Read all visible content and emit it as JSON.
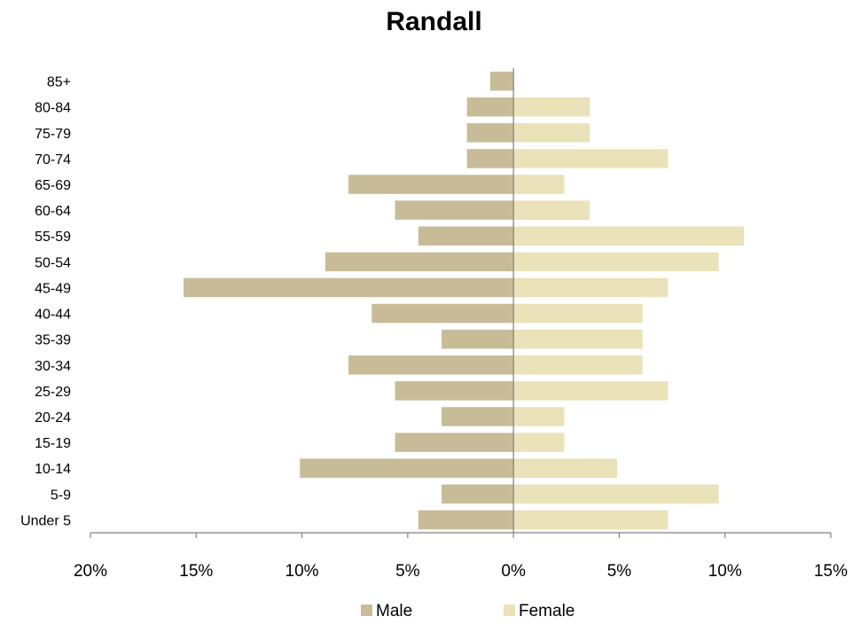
{
  "chart_data": {
    "type": "bar",
    "orientation": "horizontal",
    "title": "Randall",
    "xlabel": "",
    "ylabel": "",
    "categories": [
      "85+",
      "80-84",
      "75-79",
      "70-74",
      "65-69",
      "60-64",
      "55-59",
      "50-54",
      "45-49",
      "40-44",
      "35-39",
      "30-34",
      "25-29",
      "20-24",
      "15-19",
      "10-14",
      "5-9",
      "Under 5"
    ],
    "series": [
      {
        "name": "Male",
        "color": "#C8BC98",
        "values": [
          1.1,
          2.2,
          2.2,
          2.2,
          7.8,
          5.6,
          4.5,
          8.9,
          15.6,
          6.7,
          3.4,
          7.8,
          5.6,
          3.4,
          5.6,
          10.1,
          3.4,
          4.5
        ]
      },
      {
        "name": "Female",
        "color": "#EAE2B8",
        "values": [
          0,
          3.6,
          3.6,
          7.3,
          2.4,
          3.6,
          10.9,
          9.7,
          7.3,
          6.1,
          6.1,
          6.1,
          7.3,
          2.4,
          2.4,
          4.9,
          9.7,
          7.3
        ]
      }
    ],
    "xlim": [
      -20,
      15
    ],
    "xticks": [
      -20,
      -15,
      -10,
      -5,
      0,
      5,
      10,
      15
    ],
    "xtick_labels": [
      "20%",
      "15%",
      "10%",
      "5%",
      "0%",
      "5%",
      "10%",
      "15%"
    ],
    "grid": false,
    "legend_position": "bottom"
  }
}
